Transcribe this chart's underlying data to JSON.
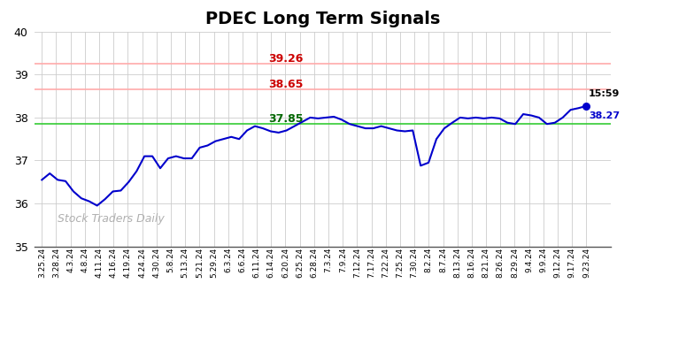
{
  "title": "PDEC Long Term Signals",
  "title_fontsize": 14,
  "title_fontweight": "bold",
  "ylim": [
    35,
    40
  ],
  "yticks": [
    35,
    36,
    37,
    38,
    39,
    40
  ],
  "background_color": "#ffffff",
  "grid_color": "#cccccc",
  "line_color": "#0000cc",
  "line_width": 1.5,
  "hline_green": 37.85,
  "hline_red1": 38.65,
  "hline_red2": 39.26,
  "hline_green_color": "#33cc33",
  "hline_red1_color": "#ffaaaa",
  "hline_red2_color": "#ffaaaa",
  "annotation_color_red": "#cc0000",
  "annotation_color_green": "#006600",
  "last_price": "38.27",
  "last_time": "15:59",
  "watermark": "Stock Traders Daily",
  "x_labels": [
    "3.25.24",
    "3.28.24",
    "4.3.24",
    "4.8.24",
    "4.11.24",
    "4.16.24",
    "4.19.24",
    "4.24.24",
    "4.30.24",
    "5.8.24",
    "5.13.24",
    "5.21.24",
    "5.29.24",
    "6.3.24",
    "6.6.24",
    "6.11.24",
    "6.14.24",
    "6.20.24",
    "6.25.24",
    "6.28.24",
    "7.3.24",
    "7.9.24",
    "7.12.24",
    "7.17.24",
    "7.22.24",
    "7.25.24",
    "7.30.24",
    "8.2.24",
    "8.7.24",
    "8.13.24",
    "8.16.24",
    "8.21.24",
    "8.26.24",
    "8.29.24",
    "9.4.24",
    "9.9.24",
    "9.12.24",
    "9.17.24",
    "9.23.24"
  ],
  "prices": [
    36.55,
    36.7,
    36.55,
    36.52,
    36.28,
    36.12,
    36.05,
    35.95,
    36.1,
    36.28,
    36.3,
    36.5,
    36.75,
    37.1,
    37.1,
    36.82,
    37.05,
    37.1,
    37.05,
    37.05,
    37.3,
    37.35,
    37.45,
    37.5,
    37.55,
    37.5,
    37.7,
    37.8,
    37.75,
    37.68,
    37.65,
    37.7,
    37.8,
    37.9,
    38.0,
    37.98,
    38.0,
    38.02,
    37.95,
    37.85,
    37.8,
    37.75,
    37.75,
    37.8,
    37.75,
    37.7,
    37.68,
    37.7,
    36.88,
    36.95,
    37.5,
    37.75,
    37.88,
    38.0,
    37.98,
    38.0,
    37.98,
    38.0,
    37.98,
    37.88,
    37.85,
    38.08,
    38.05,
    38.0,
    37.85,
    37.88,
    38.0,
    38.18,
    38.22,
    38.27
  ]
}
